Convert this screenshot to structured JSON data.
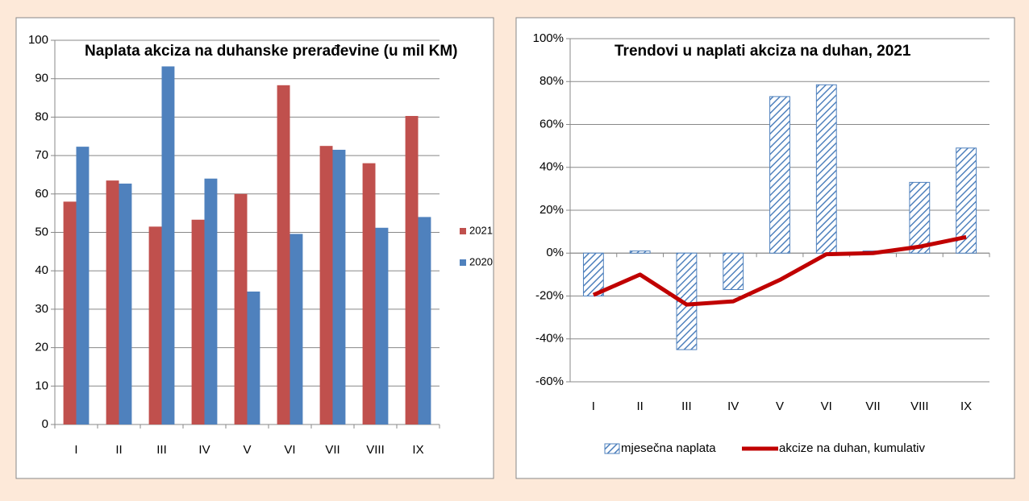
{
  "chart_data": [
    {
      "type": "bar",
      "title": "Naplata akciza na duhanske prerađevine (u mil KM)",
      "categories": [
        "I",
        "II",
        "III",
        "IV",
        "V",
        "VI",
        "VII",
        "VIII",
        "IX"
      ],
      "series": [
        {
          "name": "2021",
          "color": "#c0504d",
          "values": [
            58,
            63.5,
            51.5,
            53.3,
            60,
            88.3,
            72.5,
            68,
            80.3
          ]
        },
        {
          "name": "2020",
          "color": "#4f81bd",
          "values": [
            72.3,
            62.7,
            93.2,
            64,
            34.6,
            49.6,
            71.5,
            51.2,
            54
          ]
        }
      ],
      "ylim": [
        0,
        100
      ],
      "yticks": [
        0,
        10,
        20,
        30,
        40,
        50,
        60,
        70,
        80,
        90,
        100
      ],
      "grid": true,
      "legend": "right"
    },
    {
      "type": "combo",
      "title": "Trendovi u naplati akciza na duhan, 2021",
      "categories": [
        "I",
        "II",
        "III",
        "IV",
        "V",
        "VI",
        "VII",
        "VIII",
        "IX"
      ],
      "series": [
        {
          "name": "mjesečna naplata",
          "kind": "bar",
          "color": "#4f81bd",
          "values": [
            -20,
            1,
            -45,
            -17,
            73,
            78.5,
            1,
            33,
            49
          ]
        },
        {
          "name": "akcize na duhan, kumulativ",
          "kind": "line",
          "color": "#c00000",
          "values": [
            -19.5,
            -10,
            -24,
            -22.5,
            -12.5,
            -0.5,
            0,
            3,
            7.5
          ]
        }
      ],
      "ylim": [
        -60,
        100
      ],
      "yticks": [
        {
          "value": -60,
          "label": "-60%"
        },
        {
          "value": -40,
          "label": "-40%"
        },
        {
          "value": -20,
          "label": "-20%"
        },
        {
          "value": 0,
          "label": "0%"
        },
        {
          "value": 20,
          "label": "20%"
        },
        {
          "value": 40,
          "label": "40%"
        },
        {
          "value": 60,
          "label": "60%"
        },
        {
          "value": 80,
          "label": "80%"
        },
        {
          "value": 100,
          "label": "100%"
        }
      ],
      "grid": true,
      "legend": "bottom"
    }
  ]
}
